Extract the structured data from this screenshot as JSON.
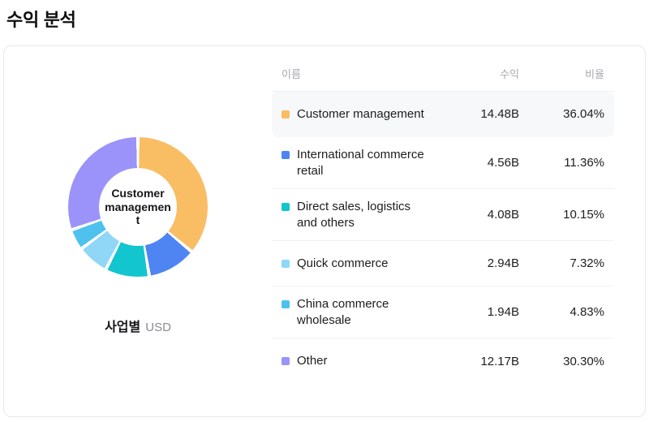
{
  "page": {
    "title": "수익 분석"
  },
  "chart": {
    "center_label": "Customer management",
    "caption_label": "사업별",
    "caption_unit": "USD"
  },
  "table": {
    "headers": {
      "name": "이름",
      "revenue": "수익",
      "ratio": "비율"
    }
  },
  "chart_data": {
    "type": "pie",
    "variant": "donut",
    "title": "수익 분석",
    "categories": [
      "Customer management",
      "International commerce retail",
      "Direct sales, logistics and others",
      "Quick commerce",
      "China commerce wholesale",
      "Other"
    ],
    "values": [
      36.04,
      11.36,
      10.15,
      7.32,
      4.83,
      30.3
    ],
    "revenue_labels": [
      "14.48B",
      "4.56B",
      "4.08B",
      "2.94B",
      "1.94B",
      "12.17B"
    ],
    "percent_labels": [
      "36.04%",
      "11.36%",
      "10.15%",
      "7.32%",
      "4.83%",
      "30.30%"
    ],
    "colors": [
      "#F9BD64",
      "#4E85F2",
      "#12C5CF",
      "#90D7F7",
      "#4FC1EF",
      "#9B93FA"
    ],
    "unit": "USD",
    "center_label": "Customer management",
    "selected_index": 0,
    "start_angle_deg": 0,
    "direction": "clockwise",
    "legend_position": "right-table"
  }
}
